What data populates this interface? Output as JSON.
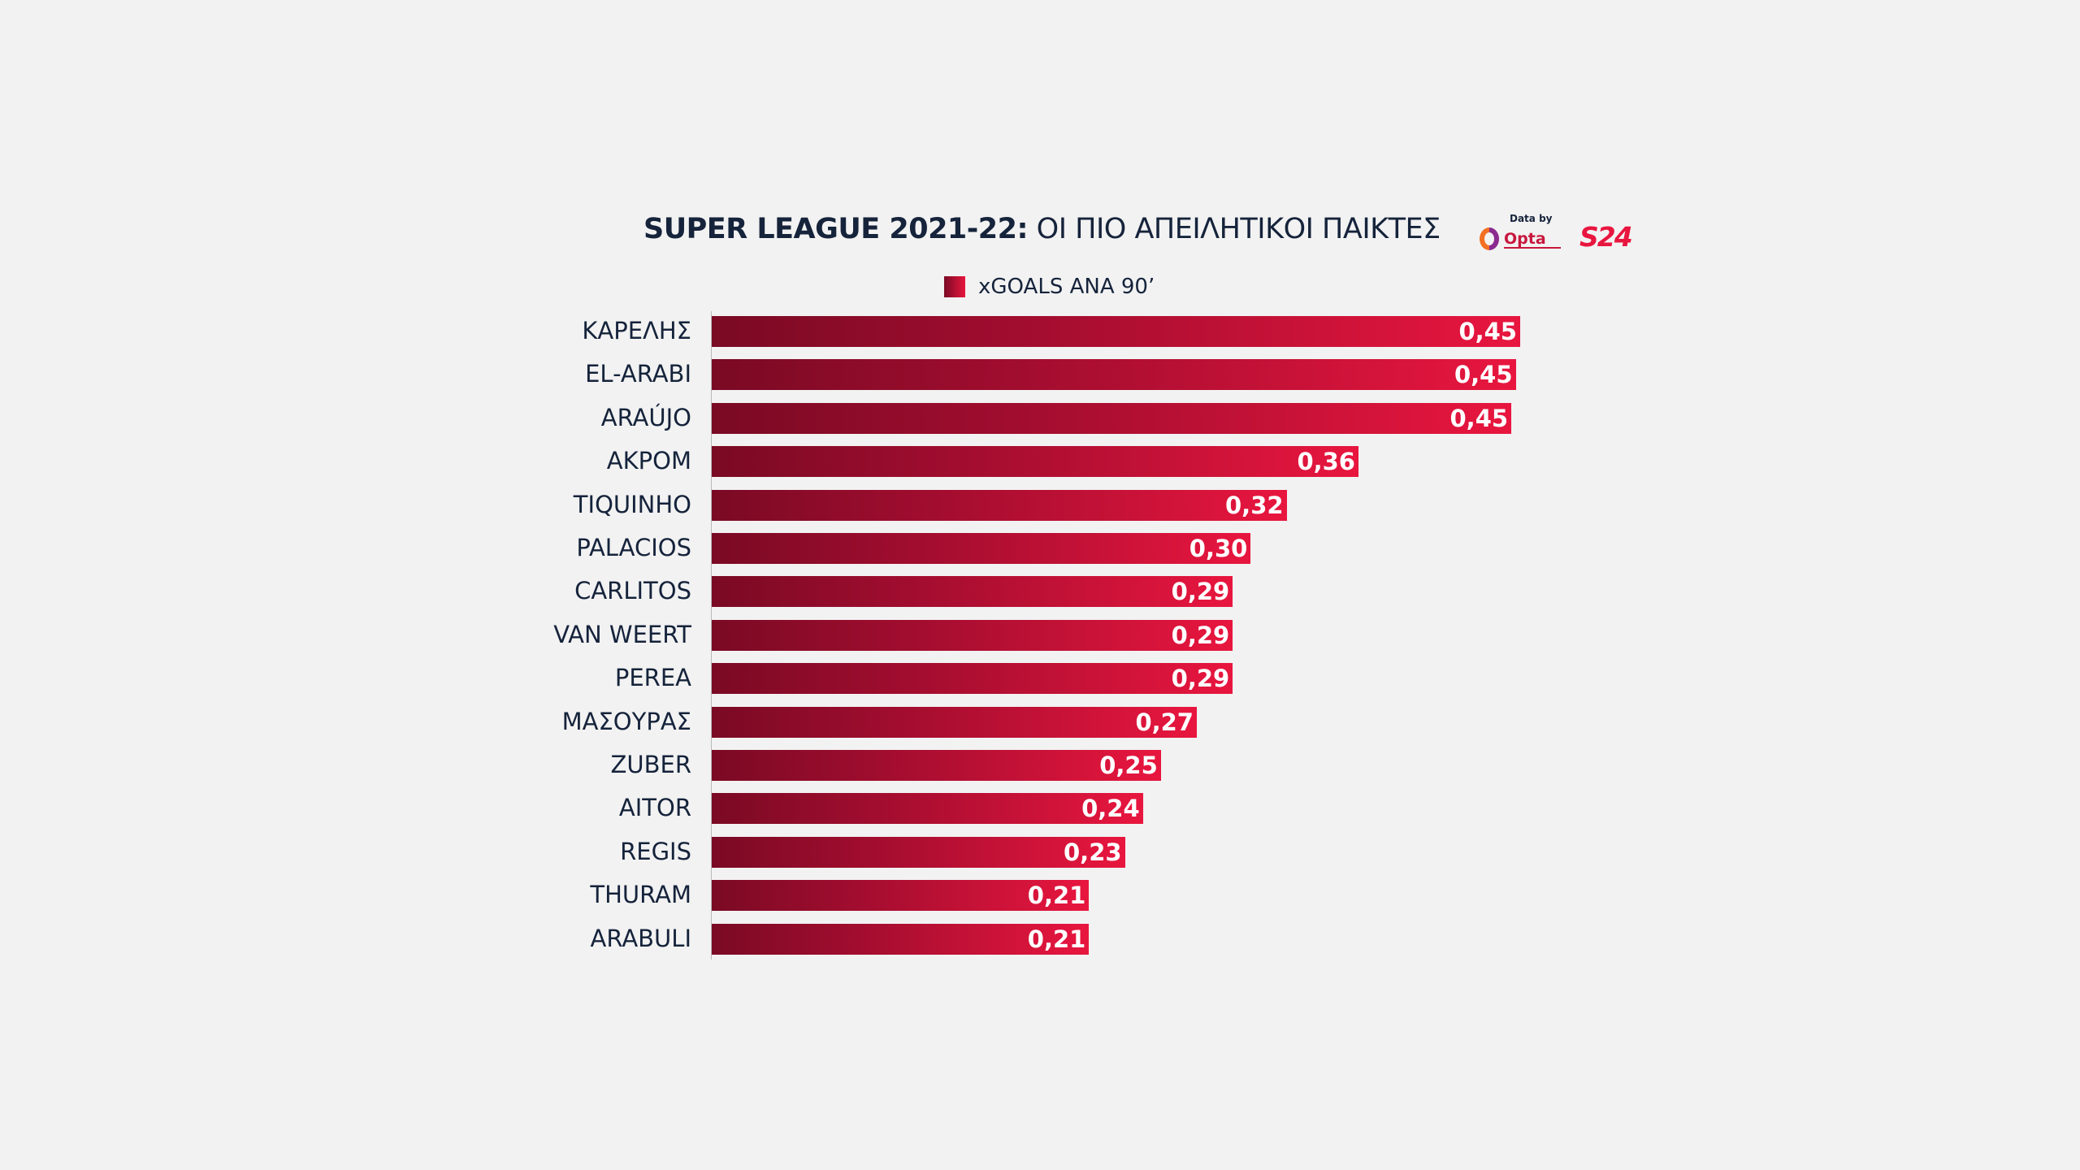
{
  "header": {
    "title_bold": "SUPER LEAGUE 2021-22:",
    "title_light": " ΟΙ ΠΙΟ ΑΠΕΙΛΗΤΙΚΟΙ ΠΑΙΚΤΕΣ",
    "credit_label": "Data by",
    "opta_text": "Opta",
    "s24_text": "S24"
  },
  "colors": {
    "background": "#f2f2f2",
    "bar_dark": "#7a0a24",
    "bar_light": "#e8163f",
    "text": "#15233b"
  },
  "chart_data": {
    "type": "bar",
    "orientation": "horizontal",
    "title": "SUPER LEAGUE 2021-22: ΟΙ ΠΙΟ ΑΠΕΙΛΗΤΙΚΟΙ ΠΑΙΚΤΕΣ",
    "legend": [
      "xGOALS ΑΝΑ 90’"
    ],
    "legend_position": "top",
    "grid": false,
    "categories": [
      "ΚΑΡΕΛΗΣ",
      "EL-ARABI",
      "ARAÚJO",
      "ΑΚΡΟΜ",
      "TIQUINHO",
      "PALACIOS",
      "CARLITOS",
      "VAN WEERT",
      "PEREA",
      "ΜΑΣΟΥΡΑΣ",
      "ZUBER",
      "AITOR",
      "REGIS",
      "THURAM",
      "ARABULI"
    ],
    "series": [
      {
        "name": "xGOALS ΑΝΑ 90’",
        "values": [
          0.45,
          0.45,
          0.45,
          0.36,
          0.32,
          0.3,
          0.29,
          0.29,
          0.29,
          0.27,
          0.25,
          0.24,
          0.23,
          0.21,
          0.21
        ],
        "labels": [
          "0,45",
          "0,45",
          "0,45",
          "0,36",
          "0,32",
          "0,30",
          "0,29",
          "0,29",
          "0,29",
          "0,27",
          "0,25",
          "0,24",
          "0,23",
          "0,21",
          "0,21"
        ]
      }
    ],
    "xlim": [
      0,
      0.45
    ]
  }
}
